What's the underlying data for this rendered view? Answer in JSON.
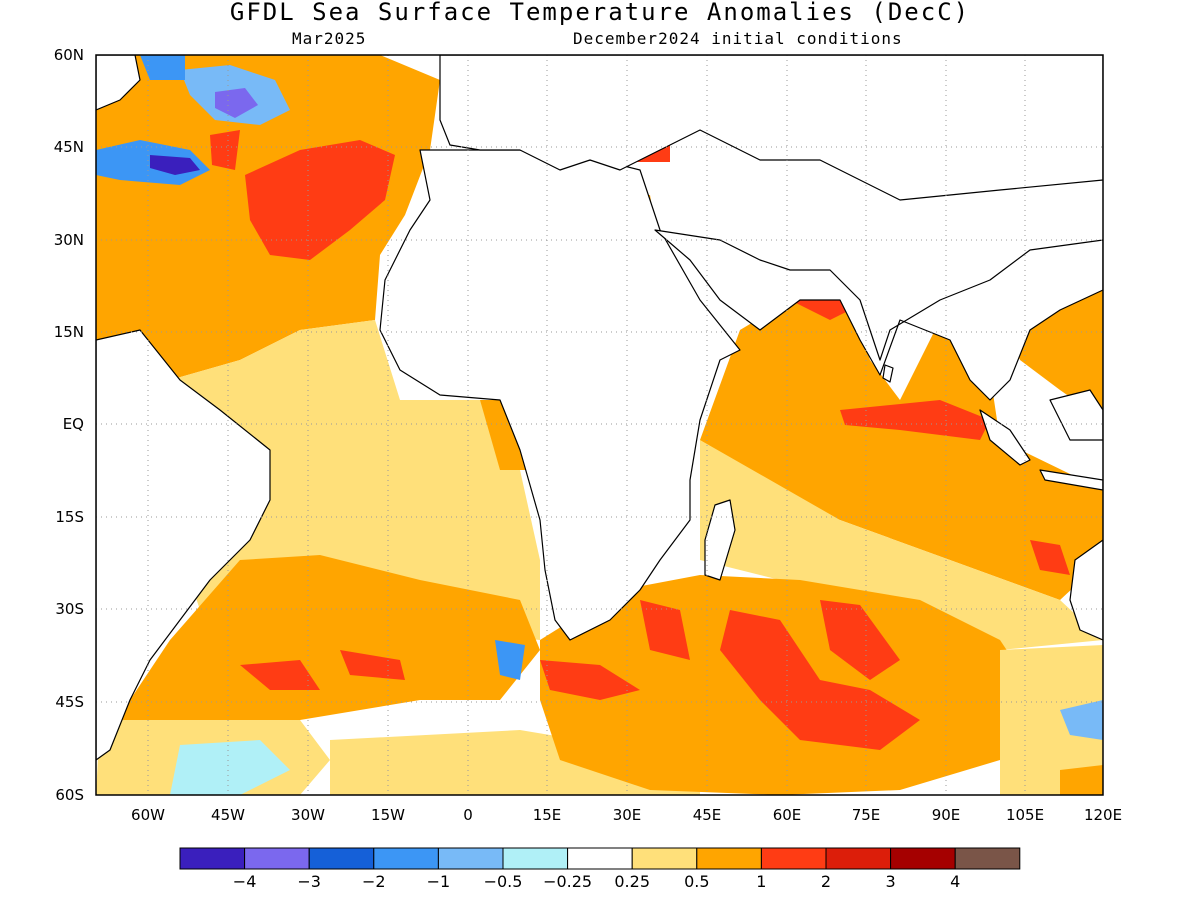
{
  "title": "GFDL Sea Surface Temperature Anomalies (DecC)",
  "subtitle_left": "Mar2025",
  "subtitle_right": "December2024 initial conditions",
  "lat_labels": [
    "60N",
    "45N",
    "30N",
    "15N",
    "EQ",
    "15S",
    "30S",
    "45S",
    "60S"
  ],
  "lon_labels": [
    "60W",
    "45W",
    "30W",
    "15W",
    "0",
    "15E",
    "30E",
    "45E",
    "60E",
    "75E",
    "90E",
    "105E",
    "120E"
  ],
  "colorbar": {
    "colors": [
      "#3a1fbd",
      "#7b68ee",
      "#1560d8",
      "#3c96f5",
      "#78baf7",
      "#b0f0f7",
      "#ffffff",
      "#ffe07a",
      "#ffa500",
      "#ff3c14",
      "#dc1e0a",
      "#a50000",
      "#7a5548"
    ],
    "labels": [
      "−4",
      "−3",
      "−2",
      "−1",
      "−0.5",
      "−0.25",
      "0.25",
      "0.5",
      "1",
      "2",
      "3",
      "4"
    ]
  }
}
